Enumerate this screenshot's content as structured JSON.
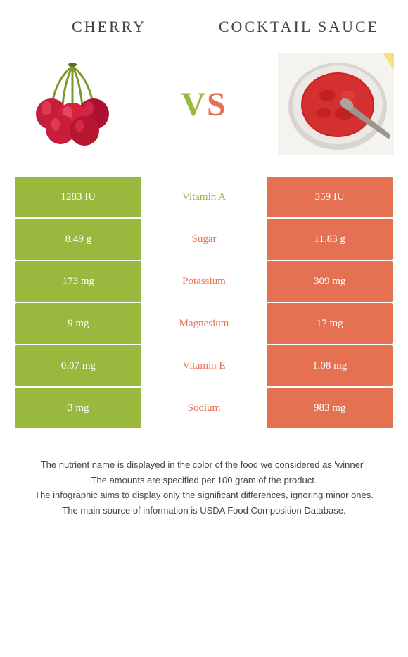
{
  "left": {
    "title": "CHERRY"
  },
  "right": {
    "title": "COCKTAIL SAUCE"
  },
  "vs": {
    "v": "V",
    "s": "S"
  },
  "colors": {
    "green": "#99b83d",
    "orange": "#e57052"
  },
  "rows": [
    {
      "left": "1283 IU",
      "label": "Vitamin A",
      "winner": "green",
      "right": "359 IU"
    },
    {
      "left": "8.49 g",
      "label": "Sugar",
      "winner": "orange",
      "right": "11.83 g"
    },
    {
      "left": "173 mg",
      "label": "Potassium",
      "winner": "orange",
      "right": "309 mg"
    },
    {
      "left": "9 mg",
      "label": "Magnesium",
      "winner": "orange",
      "right": "17 mg"
    },
    {
      "left": "0.07 mg",
      "label": "Vitamin E",
      "winner": "orange",
      "right": "1.08 mg"
    },
    {
      "left": "3 mg",
      "label": "Sodium",
      "winner": "orange",
      "right": "983 mg"
    }
  ],
  "notes": [
    "The nutrient name is displayed in the color of the food we considered as 'winner'.",
    "The amounts are specified per 100 gram of the product.",
    "The infographic aims to display only the significant differences, ignoring minor ones.",
    "The main source of information is USDA Food Composition Database."
  ]
}
